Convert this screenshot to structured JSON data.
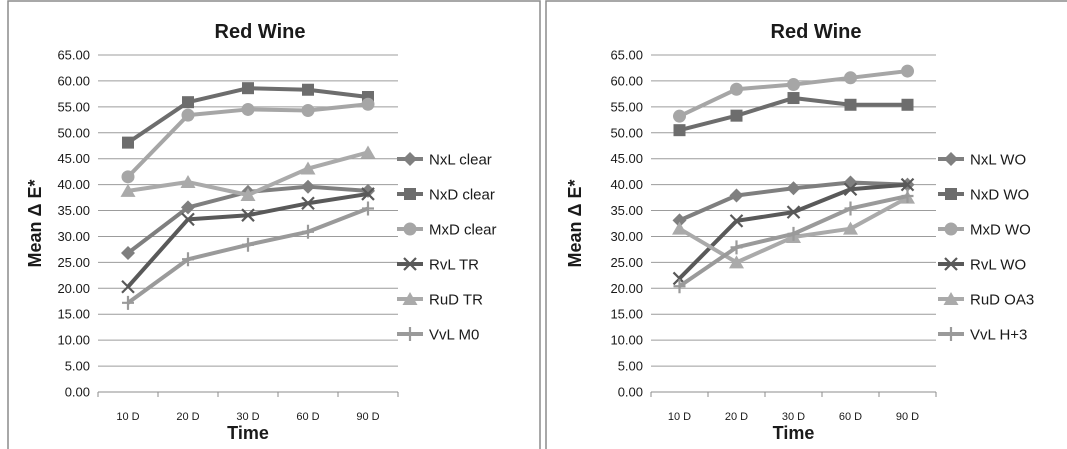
{
  "chart_data": [
    {
      "type": "line",
      "title": "Red Wine",
      "xlabel": "Time",
      "ylabel": "Mean Δ E*",
      "categories": [
        "10 D",
        "20 D",
        "30 D",
        "60 D",
        "90 D"
      ],
      "ylim": [
        0,
        65
      ],
      "ytick_step": 5,
      "ytick_labels": [
        "0.00",
        "5.00",
        "10.00",
        "15.00",
        "20.00",
        "25.00",
        "30.00",
        "35.00",
        "40.00",
        "45.00",
        "50.00",
        "55.00",
        "60.00",
        "65.00"
      ],
      "grid": true,
      "legend_position": "right",
      "series": [
        {
          "name": "NxL clear",
          "values": [
            26.8,
            35.6,
            38.6,
            39.6,
            38.8
          ],
          "color": "#7f7f7f",
          "marker": "diamond"
        },
        {
          "name": "NxD clear",
          "values": [
            48.1,
            55.9,
            58.6,
            58.3,
            56.9
          ],
          "color": "#6d6d6d",
          "marker": "square"
        },
        {
          "name": "MxD clear",
          "values": [
            41.5,
            53.4,
            54.5,
            54.3,
            55.5
          ],
          "color": "#a6a6a6",
          "marker": "circle"
        },
        {
          "name": "RvL TR",
          "values": [
            20.3,
            33.3,
            34.1,
            36.4,
            38.2
          ],
          "color": "#595959",
          "marker": "x"
        },
        {
          "name": "RuD TR",
          "values": [
            38.8,
            40.5,
            38.0,
            43.1,
            46.2
          ],
          "color": "#aaaaaa",
          "marker": "triangle"
        },
        {
          "name": "VvL M0",
          "values": [
            17.2,
            25.6,
            28.4,
            30.9,
            35.4
          ],
          "color": "#9a9a9a",
          "marker": "plus"
        }
      ]
    },
    {
      "type": "line",
      "title": "Red Wine",
      "xlabel": "Time",
      "ylabel": "Mean Δ E*",
      "categories": [
        "10 D",
        "20 D",
        "30 D",
        "60 D",
        "90 D"
      ],
      "ylim": [
        0,
        65
      ],
      "ytick_step": 5,
      "ytick_labels": [
        "0.00",
        "5.00",
        "10.00",
        "15.00",
        "20.00",
        "25.00",
        "30.00",
        "35.00",
        "40.00",
        "45.00",
        "50.00",
        "55.00",
        "60.00",
        "65.00"
      ],
      "grid": true,
      "legend_position": "right",
      "series": [
        {
          "name": "NxL WO",
          "values": [
            33.1,
            37.9,
            39.3,
            40.4,
            40.0
          ],
          "color": "#7f7f7f",
          "marker": "diamond"
        },
        {
          "name": "NxD WO",
          "values": [
            50.5,
            53.3,
            56.7,
            55.4,
            55.4
          ],
          "color": "#6d6d6d",
          "marker": "square"
        },
        {
          "name": "MxD WO",
          "values": [
            53.2,
            58.4,
            59.3,
            60.6,
            61.9
          ],
          "color": "#a6a6a6",
          "marker": "circle"
        },
        {
          "name": "RvL WO",
          "values": [
            21.9,
            33.0,
            34.7,
            39.1,
            40.0
          ],
          "color": "#595959",
          "marker": "x"
        },
        {
          "name": "RuD OA3",
          "values": [
            31.5,
            25.0,
            29.9,
            31.5,
            37.5
          ],
          "color": "#aaaaaa",
          "marker": "triangle"
        },
        {
          "name": "VvL H+3",
          "values": [
            20.4,
            27.9,
            30.5,
            35.4,
            37.8
          ],
          "color": "#9a9a9a",
          "marker": "plus"
        }
      ]
    }
  ]
}
